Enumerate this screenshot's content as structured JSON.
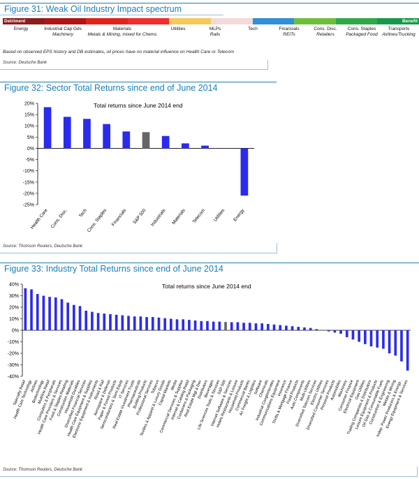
{
  "fig31": {
    "title": "Figure 31: Weak Oil Industry Impact spectrum",
    "detriment_label": "Detriment",
    "benefit_label": "Benefit",
    "spectrum_colors": [
      "#8b1d1d",
      "#b01515",
      "#e0241a",
      "#f02e2e",
      "#f6c95c",
      "#f3dada",
      "#2f8fd8",
      "#6fbe3a",
      "#2fa84a",
      "#169a4a"
    ],
    "categories": [
      {
        "top": "Energy",
        "sub": ""
      },
      {
        "top": "Industrial Cap Gds",
        "sub": "Machinery"
      },
      {
        "top": "Materials",
        "sub": "Metals & Mining, mixed for Chems"
      },
      {
        "top": "Utilities",
        "sub": ""
      },
      {
        "top": "MLPs",
        "sub": "Rails"
      },
      {
        "top": "Tech",
        "sub": ""
      },
      {
        "top": "Financials",
        "sub": "REITs"
      },
      {
        "top": "Cons. Disc.",
        "sub": "Retailers"
      },
      {
        "top": "Cons. Staples",
        "sub": "Packaged Food"
      },
      {
        "top": "Transports",
        "sub": "Airlines/Trucking"
      }
    ],
    "note": "Based on observed EPS history and DB estimates, oil prices have no material influence on Health Care or Telecom",
    "source": "Source: Deutsche Bank"
  },
  "fig32": {
    "title": "Figure 32: Sector Total Returns since end of June 2014",
    "source": "Source: Thomson Reuters,  Deutsche Bank"
  },
  "fig33": {
    "title": "Figure 33: Industry Total Returns since end of June 2014",
    "source": "Source: Thomson Reuters, Deutsche Bank"
  },
  "chart_data": [
    {
      "type": "bar",
      "title": "Total returns since June 2014 end",
      "categories": [
        "Health Care",
        "Cons. Disc.",
        "Tech",
        "Cons. Staples",
        "Financials",
        "S&P 500",
        "Industrials",
        "Materials",
        "Telecom",
        "Utilities",
        "Energy"
      ],
      "values": [
        18.3,
        14.0,
        13.1,
        10.8,
        7.5,
        7.2,
        5.5,
        2.2,
        1.2,
        0.0,
        -21.0
      ],
      "highlight": "S&P 500",
      "colors": {
        "bar": "#2b2bf0",
        "highlight": "#666666"
      },
      "yticks": [
        "20%",
        "15%",
        "10%",
        "5%",
        "0%",
        "-5%",
        "-10%",
        "-15%",
        "-20%",
        "-25%"
      ],
      "ylim": [
        -25,
        20
      ]
    },
    {
      "type": "bar",
      "title": "Total returns since June 2014 end",
      "categories": [
        "Specialty Retail",
        "Health Care Technology",
        "Airlines",
        "Biotechnology",
        "Multiline Retail",
        "Computers & Peripherals",
        "Health Care Providers & Services",
        "Food & Staples Retailing",
        "Construction Materials",
        "Household Durables",
        "Diversified Financial Services",
        "Health Care Equipment & Supplies",
        "Electronic Equipment & Instruments",
        "Road & Rail",
        "Aerospace & Defense",
        "Paper & Forest Products",
        "Semiconductors & Semi Equip",
        "IT Services",
        "Real Estate Investment Trusts",
        "Pharmaceuticals",
        "Building Products",
        "Professional Services",
        "Tobacco",
        "Textiles & Apparel & Luxury Goods",
        "Capital Markets",
        "Media",
        "Commercial Services & Supplies",
        "Internet & Catalog Retail",
        "Containers & Packaging",
        "Real Estate Mgt & Dev",
        "Distributors",
        "Beverages",
        "Life Sciences Tools & Services",
        "S&P 500",
        "Internet Software & Services",
        "Hotels Restaurants & Leisure",
        "Household Products",
        "Commercial Banks",
        "Air Freight & Logistics",
        "Software",
        "Chemicals",
        "Industrial Conglomerates",
        "Communications Equipment",
        "Insurance",
        "Thrifts & Mortgage Finance",
        "Food Products",
        "Auto Components",
        "Multi-Utilities",
        "Diversified Telecom Services",
        "Electric Utilities",
        "Diversified Consumer Services",
        "Personal Products",
        "Automobiles",
        "Machinery",
        "Consumer Finance",
        "Electrical Equipment",
        "Gas Utilities",
        "Trading Companies & Distributors",
        "Leisure Equipment & Products",
        "Oil Gas & Consumable Fuels",
        "Construction & Engineering",
        "Metals & Mining",
        "Indep. Power Producers & Energy..",
        "Energy Equipment & Services"
      ],
      "values": [
        36.5,
        35.5,
        31.5,
        30.0,
        29.0,
        28.5,
        27.0,
        24.0,
        22.0,
        21.0,
        17.0,
        16.0,
        15.0,
        14.5,
        14.0,
        13.5,
        13.0,
        12.5,
        12.0,
        12.0,
        11.5,
        11.5,
        11.0,
        10.5,
        10.0,
        9.5,
        9.5,
        9.0,
        8.5,
        8.0,
        8.0,
        7.5,
        7.5,
        7.2,
        7.0,
        7.0,
        6.5,
        6.5,
        6.0,
        6.0,
        5.5,
        5.0,
        4.5,
        4.0,
        3.5,
        3.0,
        2.5,
        2.0,
        1.0,
        0.0,
        -1.0,
        -2.0,
        -3.0,
        -6.0,
        -8.0,
        -10.0,
        -12.0,
        -14.0,
        -15.0,
        -16.0,
        -20.0,
        -22.0,
        -27.0,
        -35.0
      ],
      "highlight": "S&P 500",
      "colors": {
        "bar": "#2b2bf0",
        "highlight": "#666666"
      },
      "yticks": [
        "40%",
        "30%",
        "20%",
        "10%",
        "0%",
        "-10%",
        "-20%",
        "-30%",
        "-40%"
      ],
      "ylim": [
        -40,
        40
      ]
    }
  ]
}
